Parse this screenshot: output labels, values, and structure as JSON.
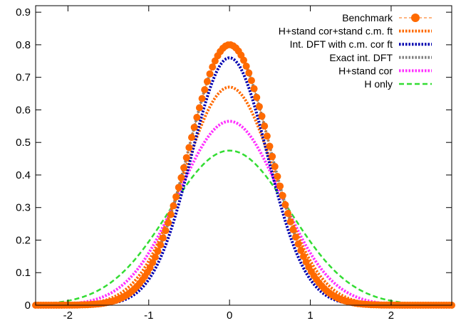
{
  "chart_data": {
    "type": "line",
    "title": "",
    "xlabel": "",
    "ylabel": "",
    "xlim": [
      -2.4,
      2.75
    ],
    "ylim": [
      0,
      0.92
    ],
    "xticks": [
      -2,
      -1,
      0,
      1,
      2
    ],
    "yticks": [
      0,
      0.1,
      0.2,
      0.3,
      0.4,
      0.5,
      0.6,
      0.7,
      0.8,
      0.9
    ],
    "xtick_labels": [
      "-2",
      "-1",
      "0",
      "1",
      "2"
    ],
    "ytick_labels": [
      "0",
      "0.1",
      "0.2",
      "0.3",
      "0.4",
      "0.5",
      "0.6",
      "0.7",
      "0.8",
      "0.9"
    ],
    "grid": false,
    "legend_position": "top-right",
    "series": [
      {
        "name": "Benchmark",
        "color": "#ff6a00",
        "style": "dashed-with-circles",
        "peak": 0.8,
        "sigma": 0.5
      },
      {
        "name": "H+stand cor+stand c.m. ft",
        "color": "#ff6a00",
        "style": "dotted-thick",
        "peak": 0.67,
        "sigma": 0.56
      },
      {
        "name": "Int. DFT with c.m. cor ft",
        "color": "#0000b0",
        "style": "dotted-thick",
        "peak": 0.76,
        "sigma": 0.47
      },
      {
        "name": "Exact int. DFT",
        "color": "#808080",
        "style": "dotted-thick",
        "peak": 0.8,
        "sigma": 0.5
      },
      {
        "name": "H+stand cor",
        "color": "#ff30ff",
        "style": "dotted-thick",
        "peak": 0.565,
        "sigma": 0.63
      },
      {
        "name": "H only",
        "color": "#33dd33",
        "style": "dashed",
        "peak": 0.475,
        "sigma": 0.75
      }
    ]
  }
}
